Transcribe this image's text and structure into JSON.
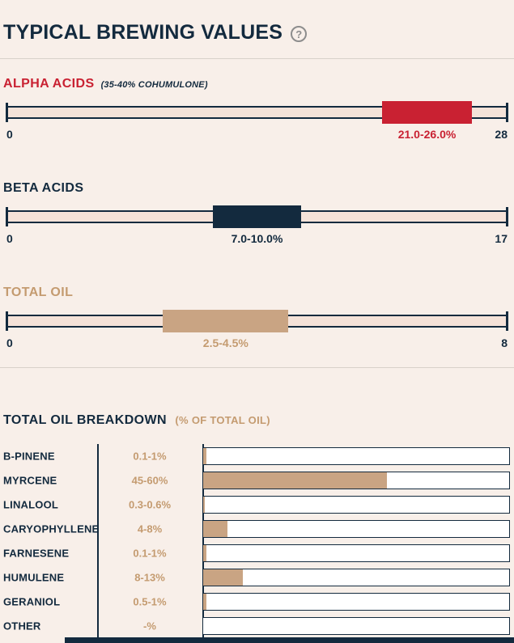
{
  "page": {
    "title": "TYPICAL BREWING VALUES",
    "help_glyph": "?"
  },
  "colors": {
    "navy": "#132a3e",
    "red": "#c92132",
    "tan_text": "#c49b70",
    "tan_fill": "#c9a483",
    "background": "#f8efe9",
    "track_band": "#f4e2d8"
  },
  "sliders": [
    {
      "id": "alpha-acids",
      "label": "ALPHA ACIDS",
      "sublabel": "(35-40% COHUMULONE)",
      "label_color": "#c92132",
      "fill_color": "#c92132",
      "value_color": "#c92132",
      "min": 0,
      "max": 28,
      "low": 21.0,
      "high": 26.0,
      "min_label": "0",
      "max_label": "28",
      "value_label": "21.0-26.0%"
    },
    {
      "id": "beta-acids",
      "label": "BETA ACIDS",
      "sublabel": "",
      "label_color": "#132a3e",
      "fill_color": "#132a3e",
      "value_color": "#132a3e",
      "min": 0,
      "max": 17,
      "low": 7.0,
      "high": 10.0,
      "min_label": "0",
      "max_label": "17",
      "value_label": "7.0-10.0%"
    },
    {
      "id": "total-oil",
      "label": "TOTAL OIL",
      "sublabel": "",
      "label_color": "#c49b70",
      "fill_color": "#c9a483",
      "value_color": "#c49b70",
      "min": 0,
      "max": 8,
      "low": 2.5,
      "high": 4.5,
      "min_label": "0",
      "max_label": "8",
      "value_label": "2.5-4.5%"
    }
  ],
  "breakdown": {
    "title": "TOTAL OIL BREAKDOWN",
    "subtitle": "(% OF TOTAL OIL)",
    "bar_max": 100,
    "rows": [
      {
        "label": "B-PINENE",
        "range": "0.1-1%",
        "bar_value": 1
      },
      {
        "label": "MYRCENE",
        "range": "45-60%",
        "bar_value": 60
      },
      {
        "label": "LINALOOL",
        "range": "0.3-0.6%",
        "bar_value": 0.6
      },
      {
        "label": "CARYOPHYLLENE",
        "range": "4-8%",
        "bar_value": 8
      },
      {
        "label": "FARNESENE",
        "range": "0.1-1%",
        "bar_value": 1
      },
      {
        "label": "HUMULENE",
        "range": "8-13%",
        "bar_value": 13
      },
      {
        "label": "GERANIOL",
        "range": "0.5-1%",
        "bar_value": 1
      },
      {
        "label": "OTHER",
        "range": "-%",
        "bar_value": 0
      }
    ]
  },
  "chart_data": [
    {
      "type": "bar",
      "title": "TYPICAL BREWING VALUES",
      "orientation": "horizontal-range",
      "series": [
        {
          "name": "ALPHA ACIDS",
          "note": "35-40% COHUMULONE",
          "low": 21.0,
          "high": 26.0,
          "xlim": [
            0,
            28
          ],
          "label": "21.0-26.0%",
          "color": "#c92132"
        },
        {
          "name": "BETA ACIDS",
          "low": 7.0,
          "high": 10.0,
          "xlim": [
            0,
            17
          ],
          "label": "7.0-10.0%",
          "color": "#132a3e"
        },
        {
          "name": "TOTAL OIL",
          "low": 2.5,
          "high": 4.5,
          "xlim": [
            0,
            8
          ],
          "label": "2.5-4.5%",
          "color": "#c9a483"
        }
      ]
    },
    {
      "type": "bar",
      "title": "TOTAL OIL BREAKDOWN",
      "subtitle": "(% OF TOTAL OIL)",
      "orientation": "horizontal",
      "categories": [
        "B-PINENE",
        "MYRCENE",
        "LINALOOL",
        "CARYOPHYLLENE",
        "FARNESENE",
        "HUMULENE",
        "GERANIOL",
        "OTHER"
      ],
      "range_labels": [
        "0.1-1%",
        "45-60%",
        "0.3-0.6%",
        "4-8%",
        "0.1-1%",
        "8-13%",
        "0.5-1%",
        "-%"
      ],
      "values": [
        1,
        60,
        0.6,
        8,
        1,
        13,
        1,
        0
      ],
      "xlim": [
        0,
        100
      ],
      "bar_color": "#c9a483",
      "grid": false,
      "legend": false
    }
  ]
}
